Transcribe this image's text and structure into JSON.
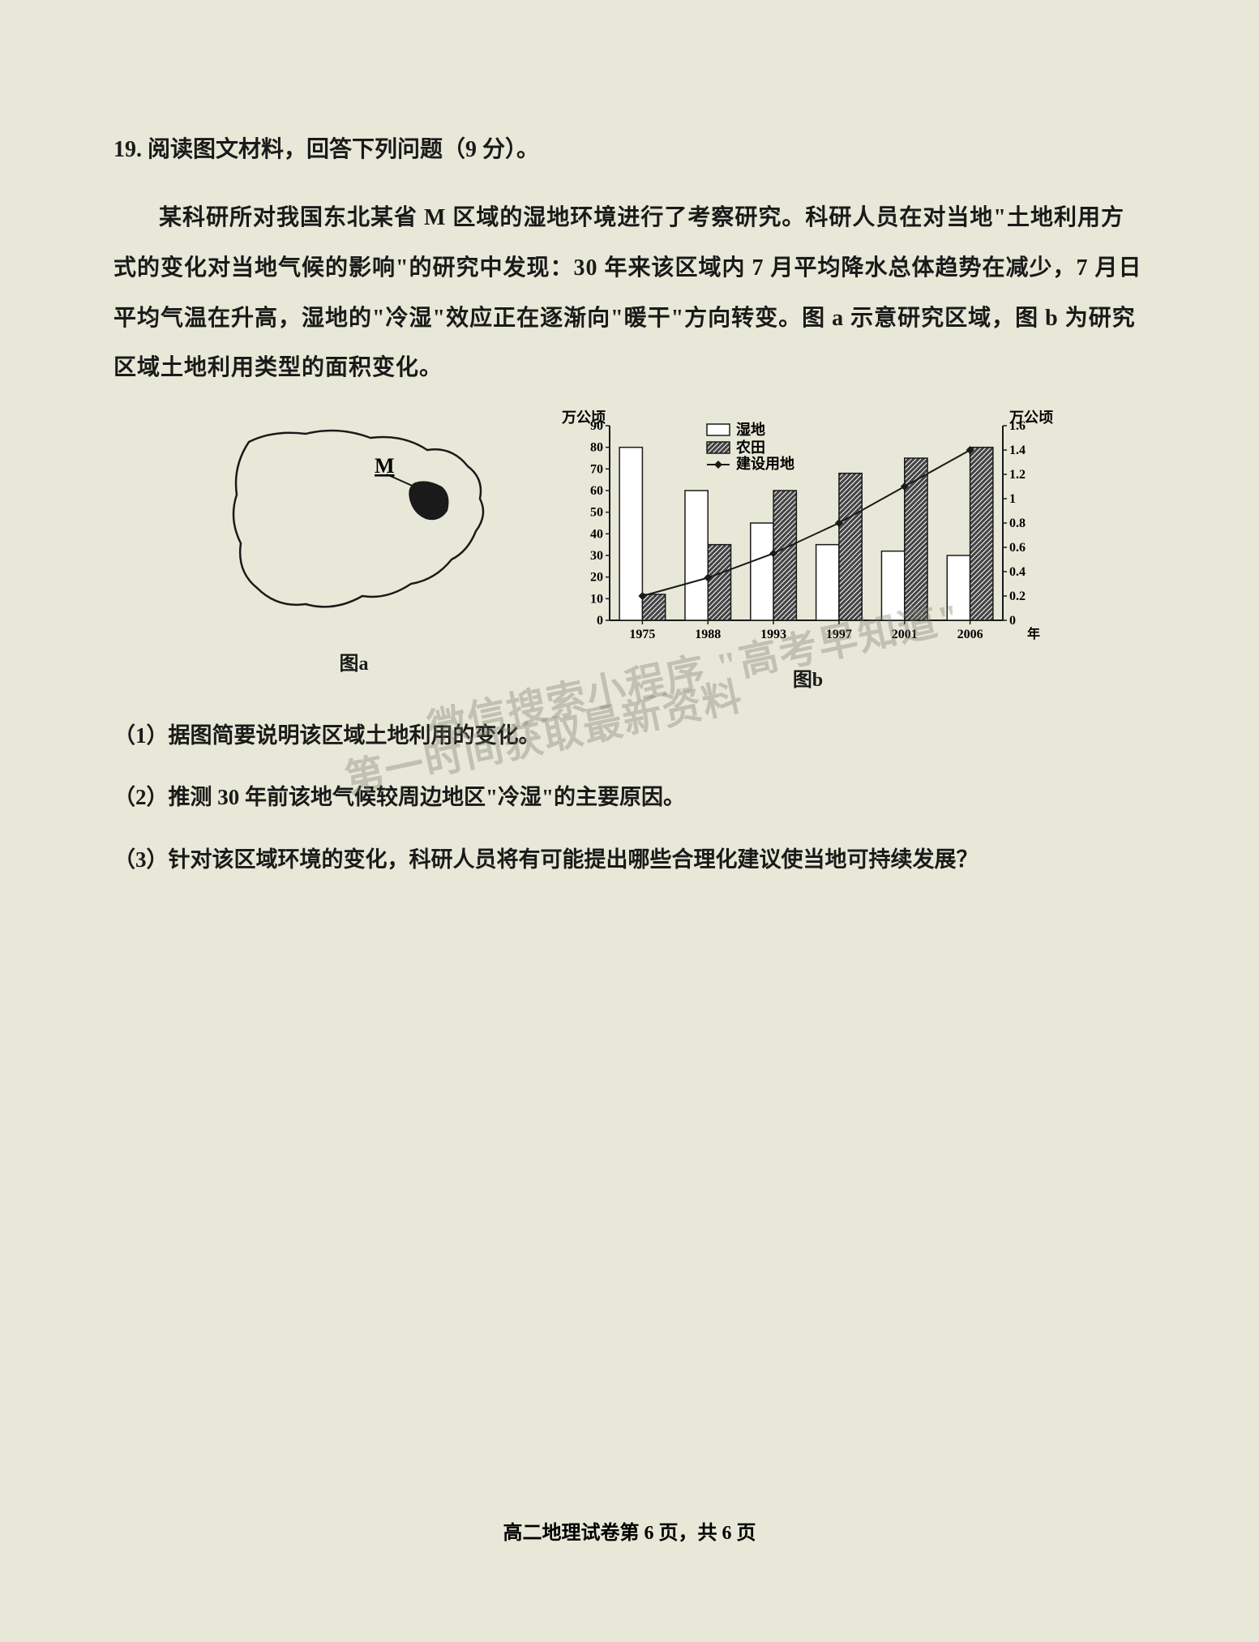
{
  "question": {
    "number": "19.",
    "header": "阅读图文材料，回答下列问题（9 分）。",
    "passage": "某科研所对我国东北某省 M 区域的湿地环境进行了考察研究。科研人员在对当地\"土地利用方式的变化对当地气候的影响\"的研究中发现：30 年来该区域内 7 月平均降水总体趋势在减少，7 月日平均气温在升高，湿地的\"冷湿\"效应正在逐渐向\"暖干\"方向转变。图 a 示意研究区域，图 b 为研究区域土地利用类型的面积变化。",
    "sub1": "（1）据图简要说明该区域土地利用的变化。",
    "sub2": "（2）推测 30 年前该地气候较周边地区\"冷湿\"的主要原因。",
    "sub3": "（3）针对该区域环境的变化，科研人员将有可能提出哪些合理化建议使当地可持续发展？"
  },
  "figure_a": {
    "label": "图a",
    "marker": "M",
    "outline_color": "#1a1a1a",
    "fill_color": "none",
    "m_region_fill": "#1a1a1a"
  },
  "figure_b": {
    "label": "图b",
    "type": "grouped-bar-with-line",
    "left_axis_label": "万公顷",
    "right_axis_label": "万公顷",
    "x_label_suffix": "年",
    "legend": {
      "wetland": "湿地",
      "farmland": "农田",
      "construction": "建设用地"
    },
    "x_categories": [
      "1975",
      "1988",
      "1993",
      "1997",
      "2001",
      "2006"
    ],
    "left_ylim": [
      0,
      90
    ],
    "left_ytick_step": 10,
    "left_yticks": [
      0,
      10,
      20,
      30,
      40,
      50,
      60,
      70,
      80,
      90
    ],
    "right_ylim": [
      0,
      1.6
    ],
    "right_ytick_step": 0.2,
    "right_yticks": [
      0,
      0.2,
      0.4,
      0.6,
      0.8,
      1,
      1.2,
      1.4,
      1.6
    ],
    "series_wetland": {
      "values": [
        80,
        60,
        45,
        35,
        32,
        30
      ],
      "color": "#ffffff",
      "border": "#1a1a1a"
    },
    "series_farmland": {
      "values": [
        12,
        35,
        60,
        68,
        75,
        80
      ],
      "color": "#333333",
      "hatch": "diagonal"
    },
    "series_construction_line": {
      "values": [
        0.2,
        0.35,
        0.55,
        0.8,
        1.1,
        1.4
      ],
      "color": "#1a1a1a",
      "marker": "diamond"
    },
    "bar_width": 0.35,
    "background_color": "#ffffff",
    "axis_color": "#1a1a1a",
    "tick_fontsize": 16,
    "legend_fontsize": 18
  },
  "watermark": {
    "line1": "微信搜索小程序 \"高考早知道\"",
    "line2": "第一时间获取最新资料"
  },
  "footer": "高二地理试卷第 6 页，共 6 页"
}
